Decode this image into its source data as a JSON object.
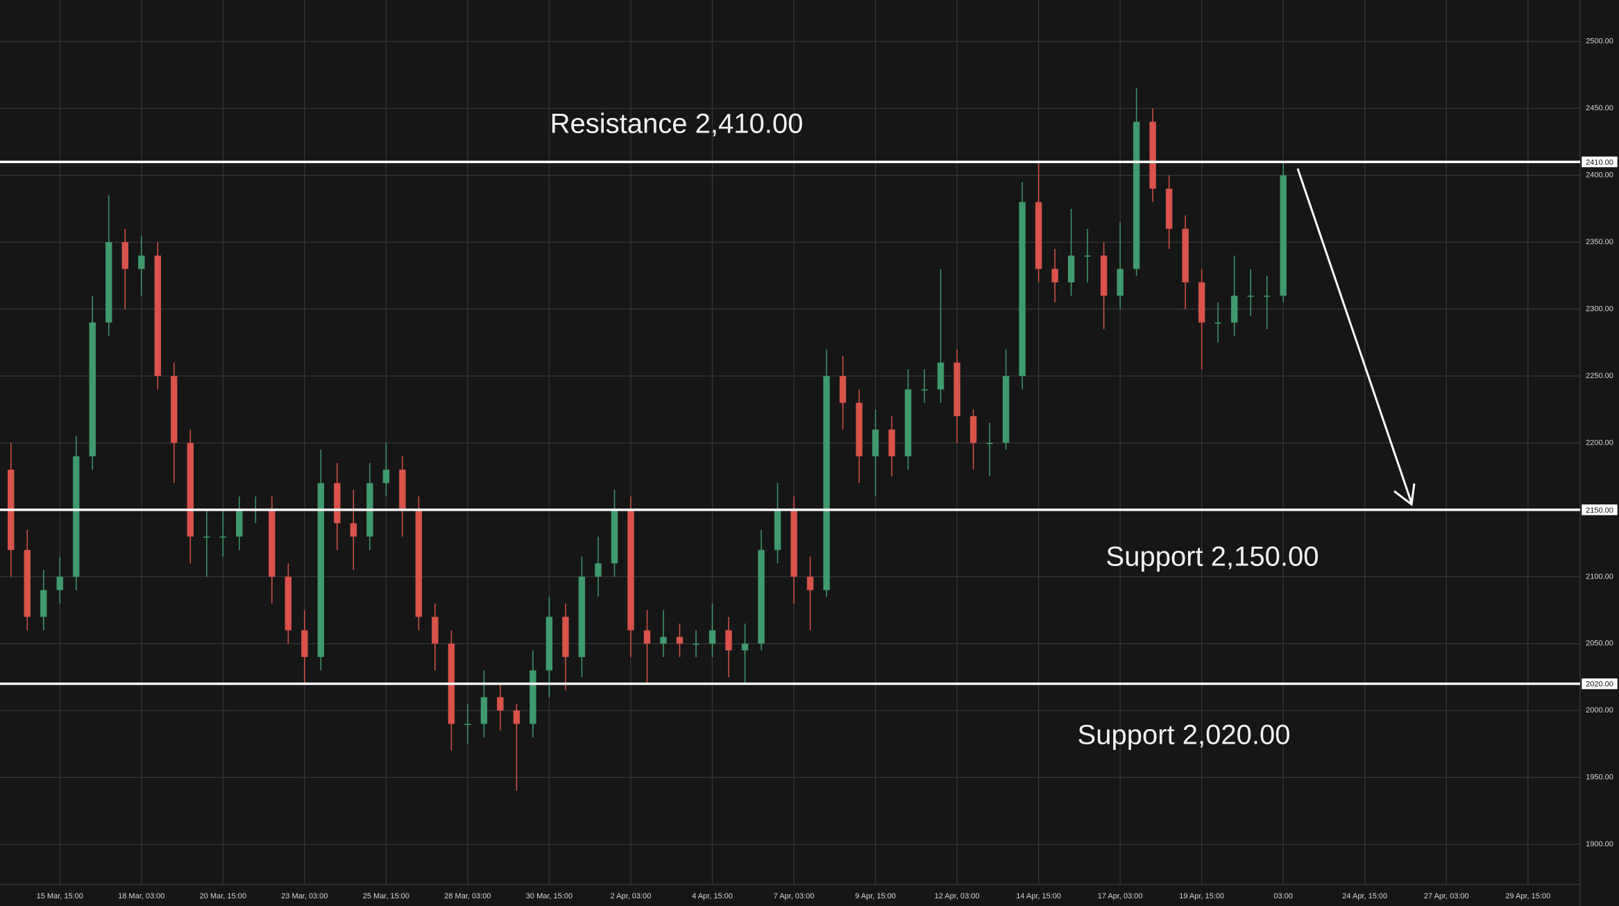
{
  "chart_data": {
    "type": "candlestick",
    "x": [
      -3,
      -2,
      -1,
      0,
      1,
      2,
      3,
      4,
      5,
      6,
      7,
      8,
      9,
      10,
      11,
      12,
      13,
      14,
      15,
      16,
      17,
      18,
      19,
      20,
      21,
      22,
      23,
      24,
      25,
      26,
      27,
      28,
      29,
      30,
      31,
      32,
      33,
      34,
      35,
      36,
      37,
      38,
      39,
      40,
      41,
      42,
      43,
      44,
      45,
      46,
      47,
      48,
      49,
      50,
      51,
      52,
      53,
      54,
      55,
      56,
      57,
      58,
      59,
      60,
      61,
      62,
      63,
      64,
      65,
      66,
      67,
      68,
      69,
      70,
      71,
      72,
      73,
      74,
      75
    ],
    "open": [
      2180,
      2120,
      2070,
      2090,
      2100,
      2190,
      2290,
      2350,
      2330,
      2340,
      2250,
      2200,
      2130,
      2130,
      2130,
      2150,
      2150,
      2100,
      2060,
      2040,
      2170,
      2140,
      2130,
      2170,
      2180,
      2150,
      2070,
      2050,
      1990,
      1990,
      2010,
      2000,
      1990,
      2030,
      2070,
      2040,
      2100,
      2110,
      2150,
      2060,
      2050,
      2055,
      2050,
      2050,
      2060,
      2045,
      2050,
      2120,
      2150,
      2100,
      2090,
      2250,
      2230,
      2190,
      2210,
      2190,
      2240,
      2240,
      2260,
      2220,
      2200,
      2200,
      2250,
      2380,
      2330,
      2320,
      2340,
      2340,
      2310,
      2330,
      2440,
      2390,
      2360,
      2320,
      2290,
      2290,
      2310,
      2310,
      2310
    ],
    "high": [
      2200,
      2135,
      2105,
      2115,
      2205,
      2310,
      2385,
      2360,
      2355,
      2350,
      2260,
      2210,
      2150,
      2150,
      2160,
      2160,
      2160,
      2110,
      2075,
      2195,
      2185,
      2165,
      2185,
      2200,
      2190,
      2160,
      2080,
      2060,
      2005,
      2030,
      2020,
      2005,
      2045,
      2085,
      2080,
      2115,
      2130,
      2165,
      2160,
      2075,
      2075,
      2065,
      2060,
      2080,
      2070,
      2065,
      2135,
      2170,
      2160,
      2115,
      2270,
      2265,
      2240,
      2225,
      2220,
      2255,
      2255,
      2330,
      2270,
      2225,
      2215,
      2270,
      2395,
      2410,
      2345,
      2375,
      2360,
      2350,
      2365,
      2465,
      2450,
      2400,
      2370,
      2330,
      2305,
      2340,
      2330,
      2325,
      2410
    ],
    "low": [
      2100,
      2060,
      2060,
      2080,
      2090,
      2180,
      2280,
      2300,
      2310,
      2240,
      2170,
      2110,
      2100,
      2115,
      2120,
      2140,
      2080,
      2050,
      2020,
      2030,
      2120,
      2105,
      2120,
      2160,
      2130,
      2060,
      2030,
      1970,
      1975,
      1980,
      1985,
      1940,
      1980,
      2010,
      2015,
      2025,
      2085,
      2100,
      2040,
      2020,
      2040,
      2040,
      2040,
      2040,
      2025,
      2020,
      2045,
      2110,
      2080,
      2060,
      2085,
      2210,
      2170,
      2160,
      2175,
      2180,
      2230,
      2230,
      2200,
      2180,
      2175,
      2195,
      2240,
      2320,
      2305,
      2310,
      2320,
      2285,
      2300,
      2325,
      2380,
      2345,
      2300,
      2255,
      2275,
      2280,
      2295,
      2285,
      2305
    ],
    "close": [
      2120,
      2070,
      2090,
      2100,
      2190,
      2290,
      2350,
      2330,
      2340,
      2250,
      2200,
      2130,
      2130,
      2130,
      2150,
      2150,
      2100,
      2060,
      2040,
      2170,
      2140,
      2130,
      2170,
      2180,
      2150,
      2070,
      2050,
      1990,
      1990,
      2010,
      2000,
      1990,
      2030,
      2070,
      2040,
      2100,
      2110,
      2150,
      2060,
      2050,
      2055,
      2050,
      2050,
      2060,
      2045,
      2050,
      2120,
      2150,
      2100,
      2090,
      2250,
      2230,
      2190,
      2210,
      2190,
      2240,
      2240,
      2260,
      2220,
      2200,
      2200,
      2250,
      2380,
      2330,
      2320,
      2340,
      2340,
      2310,
      2330,
      2440,
      2390,
      2360,
      2320,
      2290,
      2290,
      2310,
      2310,
      2310,
      2400
    ],
    "up_color": "#3f9a6e",
    "down_color": "#d9534a",
    "xlim": [
      -3.67,
      93.2
    ],
    "xticks": [
      {
        "value": 0,
        "label": "15 Mar, 15:00"
      },
      {
        "value": 5,
        "label": "18 Mar, 03:00"
      },
      {
        "value": 10,
        "label": "20 Mar, 15:00"
      },
      {
        "value": 15,
        "label": "23 Mar, 03:00"
      },
      {
        "value": 20,
        "label": "25 Mar, 15:00"
      },
      {
        "value": 25,
        "label": "28 Mar, 03:00"
      },
      {
        "value": 30,
        "label": "30 Mar, 15:00"
      },
      {
        "value": 35,
        "label": "2 Apr, 03:00"
      },
      {
        "value": 40,
        "label": "4 Apr, 15:00"
      },
      {
        "value": 45,
        "label": "7 Apr, 03:00"
      },
      {
        "value": 50,
        "label": "9 Apr, 15:00"
      },
      {
        "value": 55,
        "label": "12 Apr, 03:00"
      },
      {
        "value": 60,
        "label": "14 Apr, 15:00"
      },
      {
        "value": 65,
        "label": "17 Apr, 03:00"
      },
      {
        "value": 70,
        "label": "19 Apr, 15:00"
      },
      {
        "value": 75,
        "label": "03:00"
      },
      {
        "value": 80,
        "label": "24 Apr, 15:00"
      },
      {
        "value": 85,
        "label": "27 Apr, 03:00"
      },
      {
        "value": 90,
        "label": "29 Apr, 15:00"
      }
    ],
    "ylim": [
      1870,
      2531
    ],
    "yticks": [
      {
        "value": 1900,
        "label": "1900.00"
      },
      {
        "value": 1950,
        "label": "1950.00"
      },
      {
        "value": 2000,
        "label": "2000.00"
      },
      {
        "value": 2050,
        "label": "2050.00"
      },
      {
        "value": 2100,
        "label": "2100.00"
      },
      {
        "value": 2150,
        "label": "2150.00"
      },
      {
        "value": 2200,
        "label": "2200.00"
      },
      {
        "value": 2250,
        "label": "2250.00"
      },
      {
        "value": 2300,
        "label": "2300.00"
      },
      {
        "value": 2350,
        "label": "2350.00"
      },
      {
        "value": 2400,
        "label": "2400.00"
      },
      {
        "value": 2450,
        "label": "2450.00"
      },
      {
        "value": 2500,
        "label": "2500.00"
      }
    ],
    "grid": true,
    "levels": [
      {
        "value": 2410,
        "label": "2410.00",
        "annotation": "Resistance 2,410.00"
      },
      {
        "value": 2150,
        "label": "2150.00",
        "annotation": "Support 2,150.00"
      },
      {
        "value": 2020,
        "label": "2020.00",
        "annotation": "Support 2,020.00"
      }
    ]
  }
}
